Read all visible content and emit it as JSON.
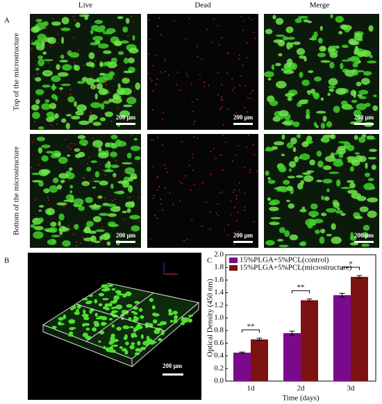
{
  "figure": {
    "panel_labels": [
      "A",
      "B",
      "C"
    ],
    "column_labels": [
      "Live",
      "Dead",
      "Merge"
    ],
    "row_labels": [
      "Top of the microstructure",
      "Bottom of the microstructure"
    ],
    "scale_label": "200 μm"
  },
  "chart_data": {
    "type": "bar",
    "categories": [
      "1d",
      "2d",
      "3d"
    ],
    "series": [
      {
        "name": "15%PLGA+5%PCL(control)",
        "color": "#7a0a8c",
        "values": [
          0.45,
          0.76,
          1.36
        ],
        "errors": [
          0.01,
          0.03,
          0.03
        ]
      },
      {
        "name": "15%PLGA+5%PCL(microstructure)",
        "color": "#7d1212",
        "values": [
          0.66,
          1.28,
          1.65
        ],
        "errors": [
          0.02,
          0.02,
          0.02
        ]
      }
    ],
    "x_label": "Time (days)",
    "y_label": "Optical Density (450 nm)",
    "ylim": [
      0,
      2.0
    ],
    "yticks": [
      {
        "value": 0,
        "label": "0.0"
      },
      0.2,
      0.4,
      0.6,
      0.8,
      {
        "value": 1,
        "label": "1.0"
      },
      1.2,
      1.4,
      1.6,
      1.8,
      {
        "value": 2,
        "label": "2.0"
      }
    ],
    "legend": "upper left",
    "annotations": [
      "**",
      "**",
      "*"
    ]
  }
}
